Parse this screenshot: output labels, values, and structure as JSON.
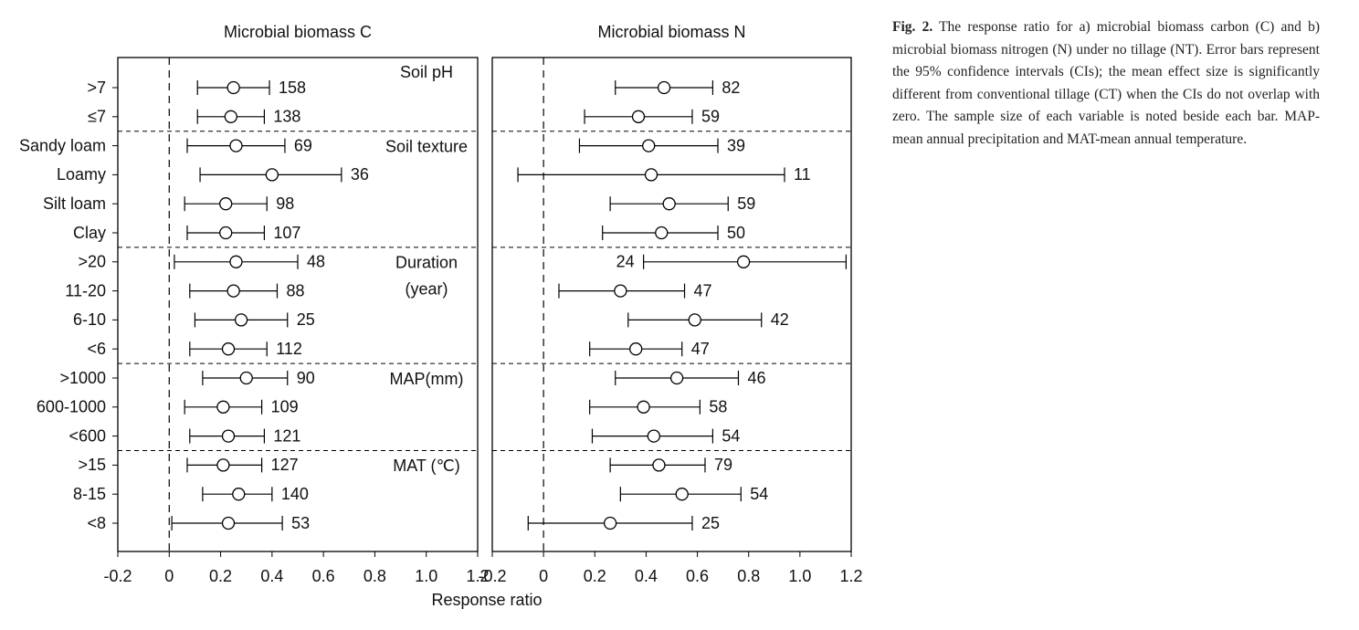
{
  "chart_data": {
    "type": "forest",
    "xlabel": "Response ratio",
    "xlim": [
      -0.2,
      1.2
    ],
    "xticks": [
      -0.2,
      0,
      0.2,
      0.4,
      0.6,
      0.8,
      {
        "value": 1,
        "label": "1.0"
      },
      1.2
    ],
    "groups": [
      {
        "label": [
          "Soil pH"
        ],
        "categories": [
          ">7",
          "≤7"
        ]
      },
      {
        "label": [
          "Soil texture"
        ],
        "categories": [
          "Sandy loam",
          "Loamy",
          "Silt loam",
          "Clay"
        ]
      },
      {
        "label": [
          "Duration",
          "(year)"
        ],
        "categories": [
          ">20",
          "11-20",
          "6-10",
          "<6"
        ]
      },
      {
        "label": [
          "MAP(mm)"
        ],
        "categories": [
          ">1000",
          "600-1000",
          "<600"
        ]
      },
      {
        "label": [
          "MAT (℃)"
        ],
        "categories": [
          ">15",
          "8-15",
          "<8"
        ]
      }
    ],
    "panels": [
      {
        "title": "Microbial biomass C",
        "values": [
          0.25,
          0.24,
          0.26,
          0.4,
          0.22,
          0.22,
          0.26,
          0.25,
          0.28,
          0.23,
          0.3,
          0.21,
          0.23,
          0.21,
          0.27,
          0.23
        ],
        "lower": [
          0.11,
          0.11,
          0.07,
          0.12,
          0.06,
          0.07,
          0.02,
          0.08,
          0.1,
          0.08,
          0.13,
          0.06,
          0.08,
          0.07,
          0.13,
          0.01
        ],
        "upper": [
          0.39,
          0.37,
          0.45,
          0.67,
          0.38,
          0.37,
          0.5,
          0.42,
          0.46,
          0.38,
          0.46,
          0.36,
          0.37,
          0.36,
          0.4,
          0.44
        ],
        "n": [
          158,
          138,
          69,
          36,
          98,
          107,
          48,
          88,
          25,
          112,
          90,
          109,
          121,
          127,
          140,
          53
        ]
      },
      {
        "title": "Microbial biomass N",
        "values": [
          0.47,
          0.37,
          0.41,
          0.42,
          0.49,
          0.46,
          0.78,
          0.3,
          0.59,
          0.36,
          0.52,
          0.39,
          0.43,
          0.45,
          0.54,
          0.26
        ],
        "lower": [
          0.28,
          0.16,
          0.14,
          -0.1,
          0.26,
          0.23,
          0.39,
          0.06,
          0.33,
          0.18,
          0.28,
          0.18,
          0.19,
          0.26,
          0.3,
          -0.06
        ],
        "upper": [
          0.66,
          0.58,
          0.68,
          0.94,
          0.72,
          0.68,
          1.18,
          0.55,
          0.85,
          0.54,
          0.76,
          0.61,
          0.66,
          0.63,
          0.77,
          0.58
        ],
        "n": [
          82,
          59,
          39,
          11,
          59,
          50,
          24,
          47,
          42,
          47,
          46,
          58,
          54,
          79,
          54,
          25
        ]
      }
    ]
  },
  "caption": {
    "label": "Fig. 2.",
    "text": "The response ratio for a) microbial biomass carbon (C) and b) microbial biomass nitrogen (N) under no tillage (NT). Error bars represent the 95% confidence intervals (CIs); the mean effect size is significantly different from conventional tillage (CT) when the CIs do not overlap with zero. The sample size of each variable is noted beside each bar. MAP- mean annual precipitation and MAT-mean annual temperature."
  }
}
